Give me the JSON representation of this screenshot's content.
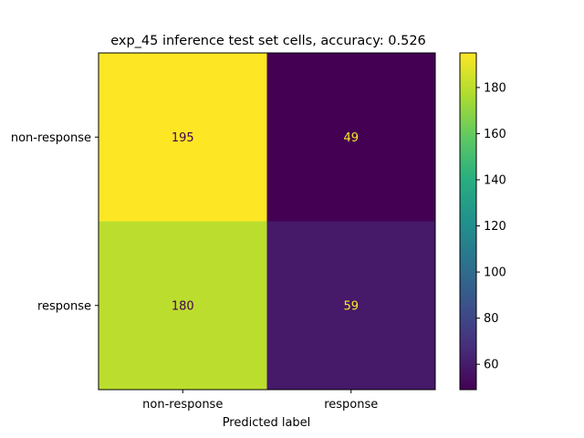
{
  "chart_data": {
    "type": "heatmap",
    "title": "exp_45 inference test set cells, accuracy: 0.526",
    "xlabel": "Predicted label",
    "ylabel": "",
    "x_categories": [
      "non-response",
      "response"
    ],
    "y_categories": [
      "non-response",
      "response"
    ],
    "values": [
      [
        195,
        49
      ],
      [
        180,
        59
      ]
    ],
    "value_labels": [
      [
        "195",
        "49"
      ],
      [
        "180",
        "59"
      ]
    ],
    "colormap": "viridis",
    "value_range": [
      49,
      195
    ],
    "colorbar": {
      "ticks": [
        60,
        80,
        100,
        120,
        140,
        160,
        180
      ],
      "tick_labels": [
        "60",
        "80",
        "100",
        "120",
        "140",
        "160",
        "180"
      ]
    },
    "text_colors": {
      "on_light": "#440154",
      "on_dark": "#fde725"
    },
    "grid": false
  }
}
